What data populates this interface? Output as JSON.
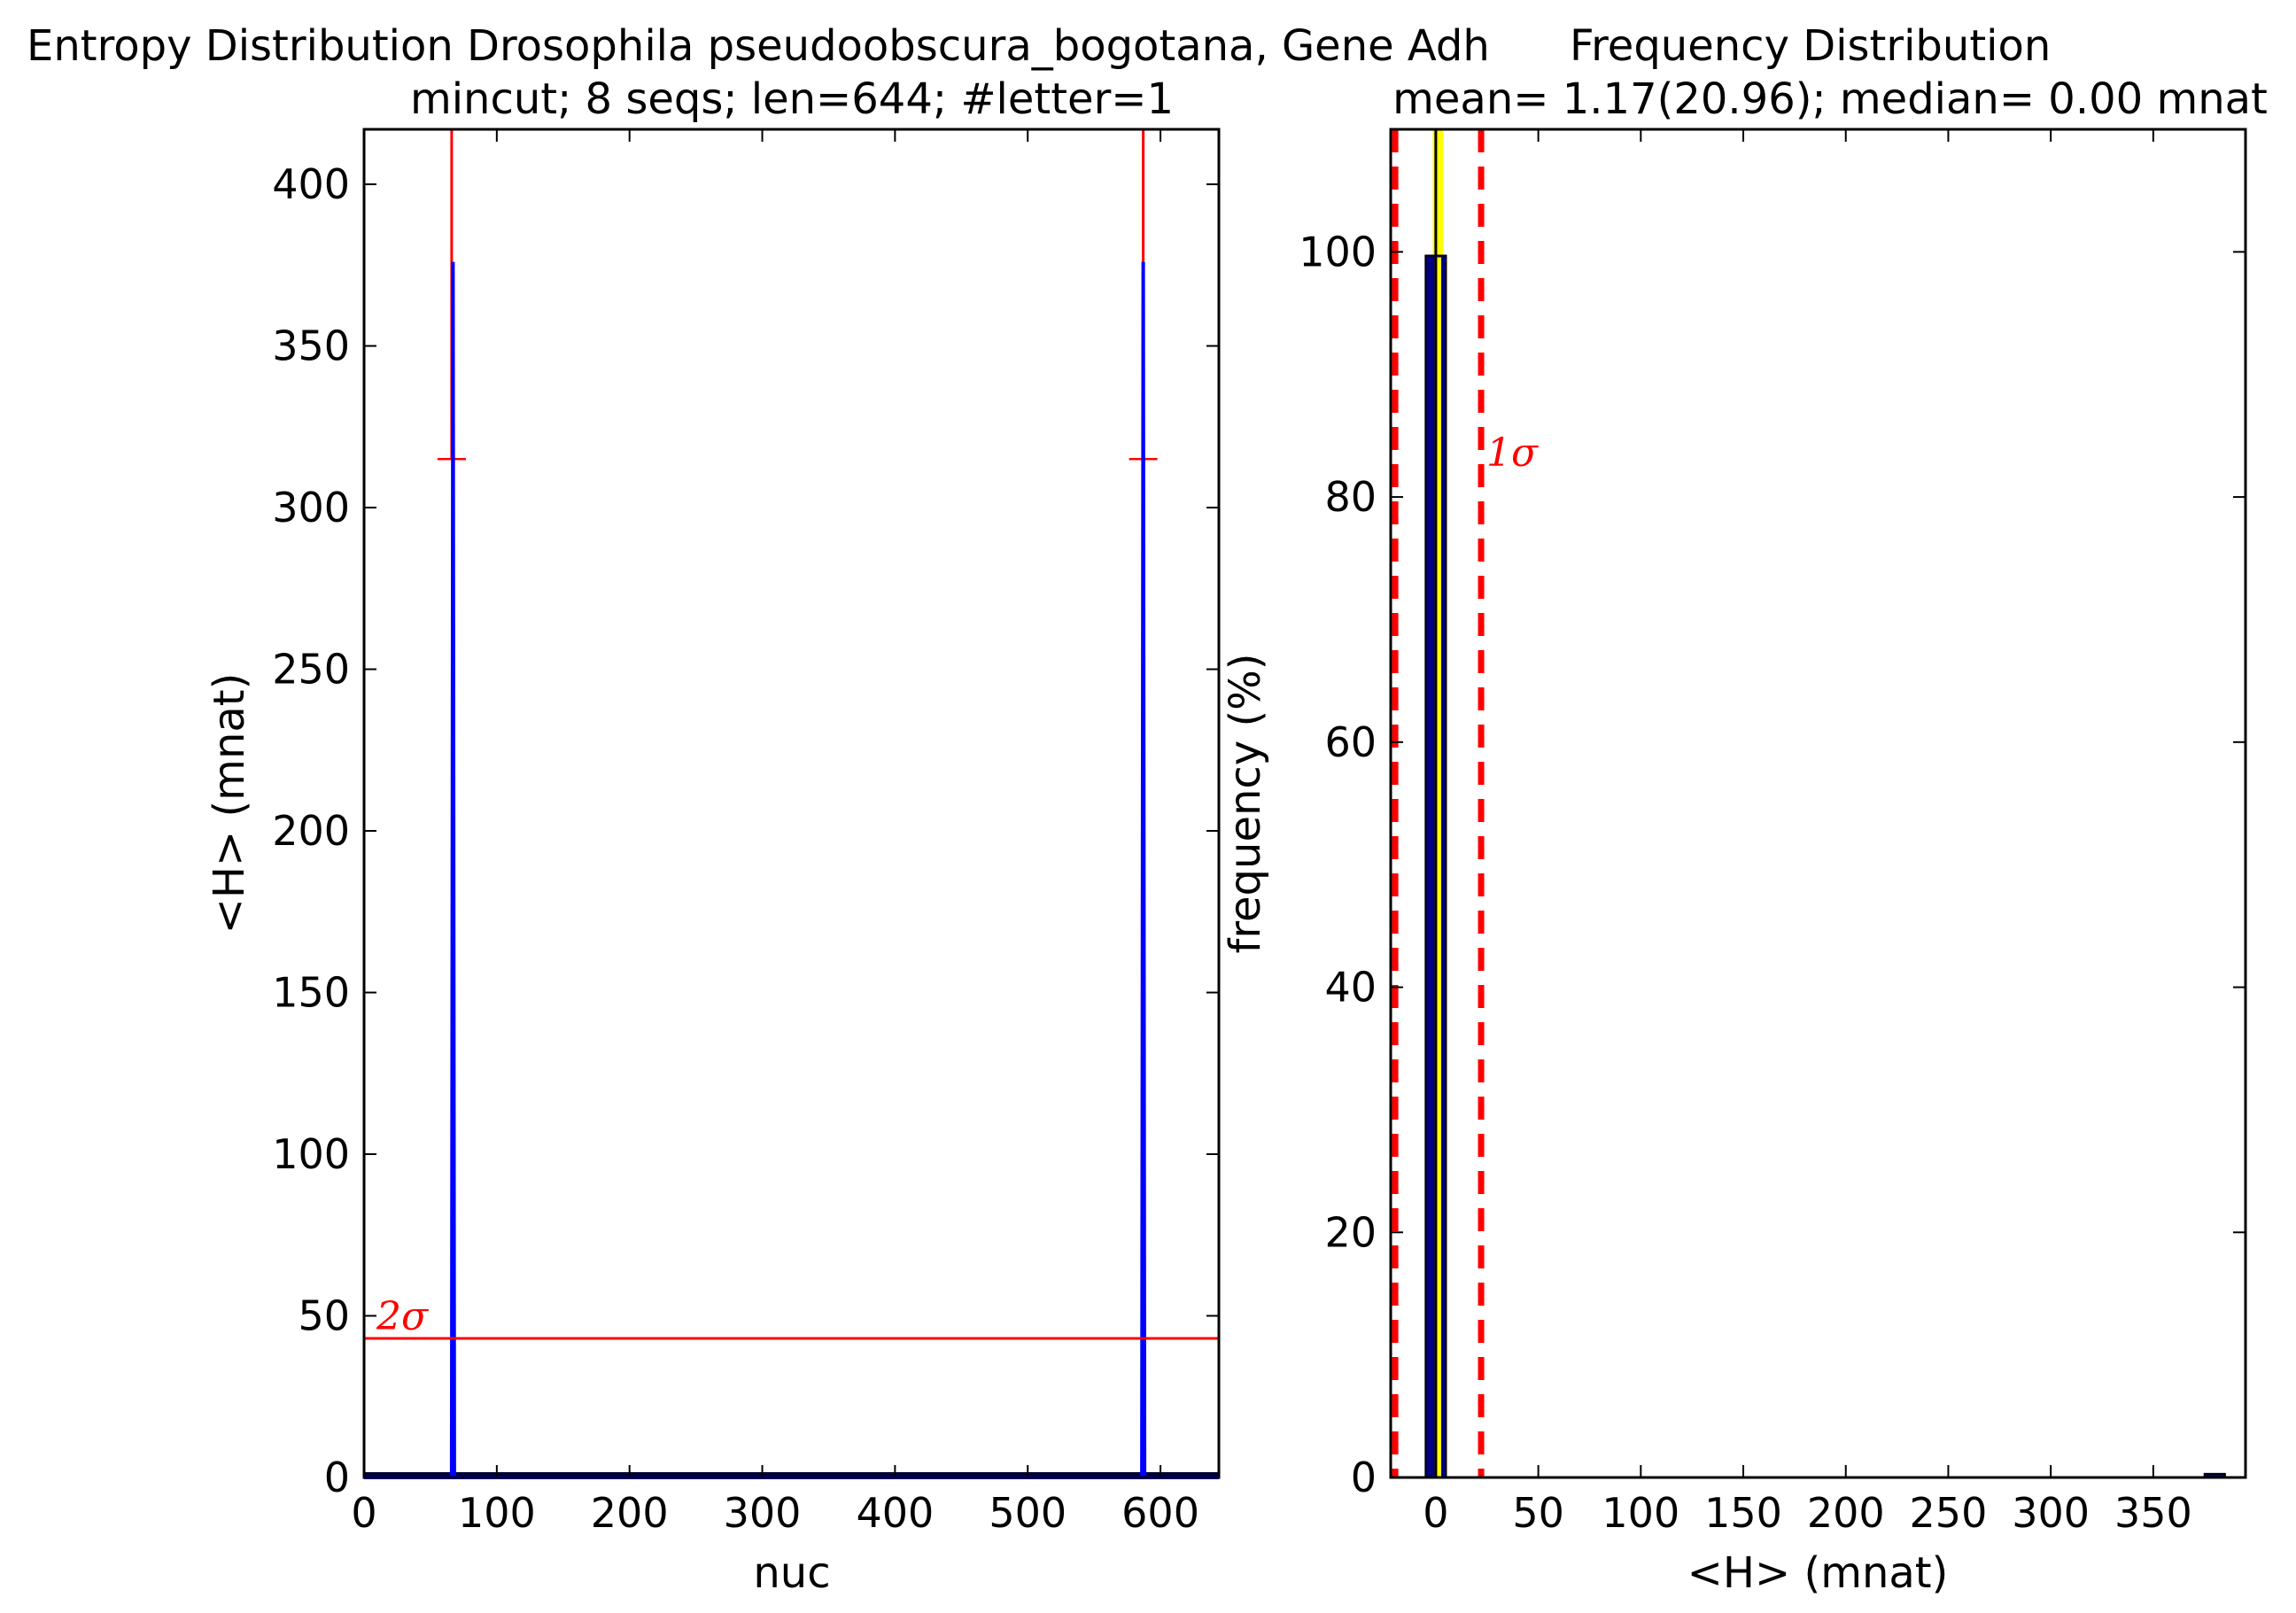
{
  "page_title": "",
  "chart_data": [
    {
      "type": "line",
      "title": "Entropy Distribution Drosophila pseudoobscura_bogotana, Gene Adh",
      "subtitle": "mincut; 8 seqs; len=644; #letter=1",
      "xlabel": "nuc",
      "ylabel": "<H> (mnat)",
      "xlim": [
        0,
        644
      ],
      "ylim": [
        0,
        417
      ],
      "xticks": [
        "0",
        "100",
        "200",
        "300",
        "400",
        "500",
        "600"
      ],
      "xtick_values": [
        0,
        100,
        200,
        300,
        400,
        500,
        600
      ],
      "yticks": [
        "0",
        "50",
        "100",
        "150",
        "200",
        "250",
        "300",
        "350",
        "400"
      ],
      "ytick_values": [
        0,
        50,
        100,
        150,
        200,
        250,
        300,
        350,
        400
      ],
      "series": [
        {
          "color": "#0000ff",
          "x": [
            0,
            66,
            67,
            68,
            586,
            587,
            588,
            644
          ],
          "y": [
            0,
            0,
            376,
            0,
            0,
            376,
            0,
            0
          ]
        }
      ],
      "threshold_line": {
        "y": 43,
        "label": "2σ",
        "color": "#ff0000"
      },
      "error_bars": [
        {
          "x": 66,
          "y_low": 315,
          "y_high": 417,
          "color": "#ff0000"
        },
        {
          "x": 587,
          "y_low": 315,
          "y_high": 417,
          "color": "#ff0000"
        }
      ],
      "grid": false
    },
    {
      "type": "bar",
      "title": "Frequency Distribution",
      "subtitle": "mean= 1.17(20.96); median= 0.00 mnat",
      "xlabel": "<H> (mnat)",
      "ylabel": "frequency (%)",
      "xlim": [
        -22,
        395
      ],
      "ylim": [
        0,
        110
      ],
      "xticks": [
        "0",
        "50",
        "100",
        "150",
        "200",
        "250",
        "300",
        "350"
      ],
      "xtick_values": [
        0,
        50,
        100,
        150,
        200,
        250,
        300,
        350
      ],
      "yticks": [
        "0",
        "20",
        "40",
        "60",
        "80",
        "100"
      ],
      "ytick_values": [
        0,
        20,
        40,
        60,
        80,
        100
      ],
      "bars": [
        {
          "x0": -5,
          "x1": 5,
          "value": 99.7,
          "fill": "#000080"
        },
        {
          "x0": 375,
          "x1": 385,
          "value": 0.3,
          "fill": "#000080"
        }
      ],
      "mean_band": {
        "x0": -1.5,
        "x1": 3.5,
        "color": "#ffff00"
      },
      "median_line": {
        "x": 0,
        "color": "#000000"
      },
      "sigma_lines": [
        {
          "x": -19.8,
          "label": "",
          "color": "#ff0000"
        },
        {
          "x": 22.1,
          "label": "1σ",
          "color": "#ff0000"
        }
      ],
      "grid": false
    }
  ]
}
